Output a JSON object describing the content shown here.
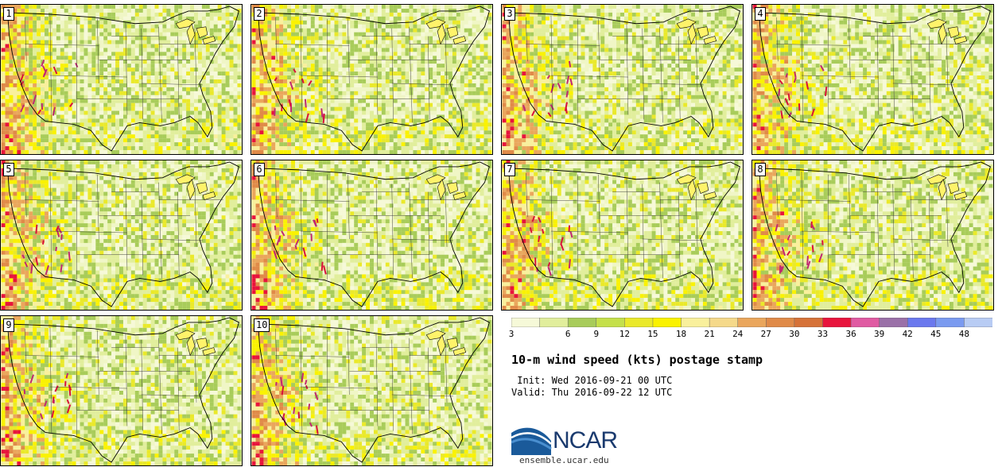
{
  "panels": [
    {
      "label": "1"
    },
    {
      "label": "2"
    },
    {
      "label": "3"
    },
    {
      "label": "4"
    },
    {
      "label": "5"
    },
    {
      "label": "6"
    },
    {
      "label": "7"
    },
    {
      "label": "8"
    },
    {
      "label": "9"
    },
    {
      "label": "10"
    }
  ],
  "colorbar": {
    "ticks": [
      "3",
      "6",
      "9",
      "12",
      "15",
      "18",
      "21",
      "24",
      "27",
      "30",
      "33",
      "36",
      "39",
      "42",
      "45",
      "48"
    ],
    "colors": [
      "#f6f9d8",
      "#e1ee9c",
      "#a8cc5a",
      "#c5e04a",
      "#eae92a",
      "#faf200",
      "#f9f09c",
      "#f5d98a",
      "#eaa65c",
      "#e08a48",
      "#d67238",
      "#e8143c",
      "#e05aa2",
      "#9a70a8",
      "#6a78ee",
      "#7a9af0",
      "#b8ccf4"
    ]
  },
  "title": "10-m wind speed (kts) postage stamp",
  "init": " Init: Wed 2016-09-21 00 UTC",
  "valid": "Valid: Thu 2016-09-22 12 UTC",
  "logo": {
    "text": "NCAR",
    "url": "ensemble.ucar.edu"
  }
}
